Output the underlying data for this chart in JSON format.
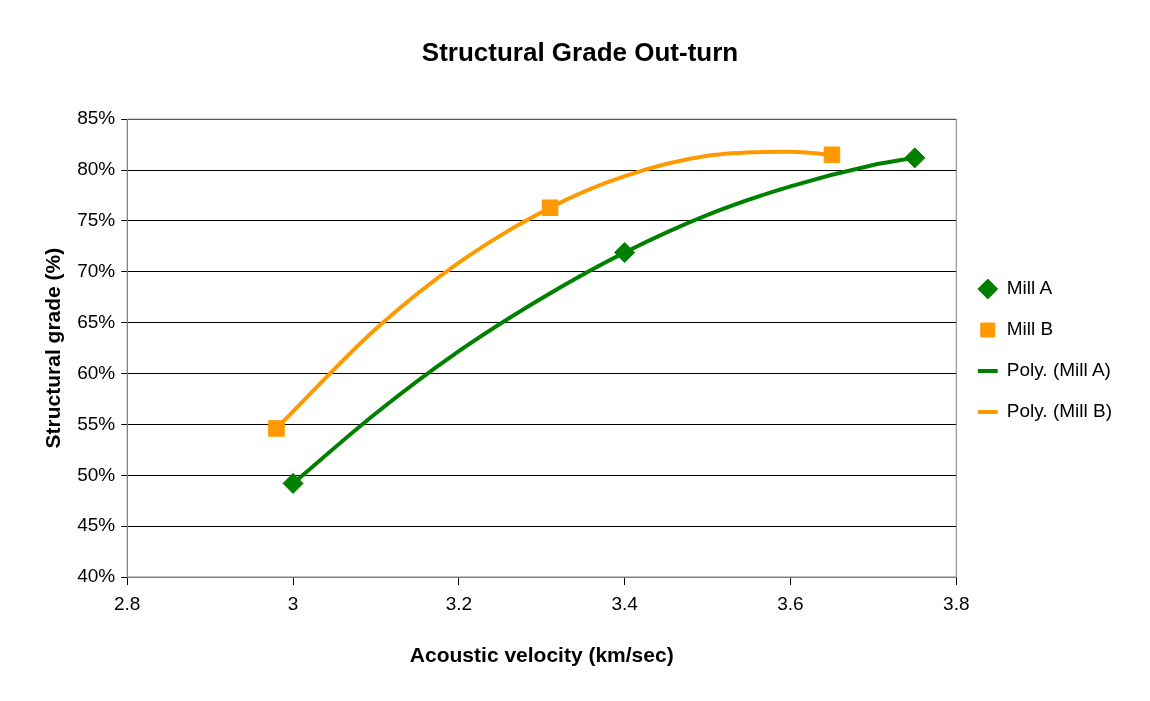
{
  "chart_data": {
    "type": "scatter",
    "title": "Structural Grade Out-turn",
    "xlabel": "Acoustic velocity (km/sec)",
    "ylabel": "Structural grade (%)",
    "xlim": [
      2.8,
      3.8
    ],
    "xticks": [
      2.8,
      3,
      3.2,
      3.4,
      3.6,
      3.8
    ],
    "ylim": [
      40,
      85
    ],
    "yticks": [
      {
        "value": 40,
        "label": "40%"
      },
      {
        "value": 45,
        "label": "45%"
      },
      {
        "value": 50,
        "label": "50%"
      },
      {
        "value": 55,
        "label": "55%"
      },
      {
        "value": 60,
        "label": "60%"
      },
      {
        "value": 65,
        "label": "65%"
      },
      {
        "value": 70,
        "label": "70%"
      },
      {
        "value": 75,
        "label": "75%"
      },
      {
        "value": 80,
        "label": "80%"
      },
      {
        "value": 85,
        "label": "85%"
      }
    ],
    "grid": "y",
    "legend": "right",
    "series": [
      {
        "name": "Mill A",
        "type": "scatter",
        "marker": "diamond",
        "color": "#008000",
        "x": [
          3.0,
          3.4,
          3.75
        ],
        "values": [
          49.2,
          71.9,
          81.2
        ]
      },
      {
        "name": "Mill B",
        "type": "scatter",
        "marker": "square",
        "color": "#ff9900",
        "x": [
          2.98,
          3.31,
          3.65
        ],
        "values": [
          54.6,
          76.3,
          81.5
        ]
      },
      {
        "name": "Poly. (Mill A)",
        "type": "line",
        "marker": "none",
        "line_style": "solid",
        "color": "#008000",
        "x": [
          3.0,
          3.1,
          3.2,
          3.3,
          3.4,
          3.5,
          3.6,
          3.7,
          3.75
        ],
        "values": [
          49.2,
          56.1,
          62.2,
          67.4,
          71.9,
          75.6,
          78.4,
          80.5,
          81.2
        ]
      },
      {
        "name": "Poly. (Mill B)",
        "type": "line",
        "marker": "none",
        "line_style": "solid",
        "color": "#ff9900",
        "x": [
          2.98,
          3.1,
          3.2,
          3.31,
          3.4,
          3.5,
          3.6,
          3.65
        ],
        "values": [
          54.6,
          64.4,
          70.9,
          76.3,
          79.4,
          81.4,
          81.8,
          81.5
        ]
      }
    ]
  }
}
